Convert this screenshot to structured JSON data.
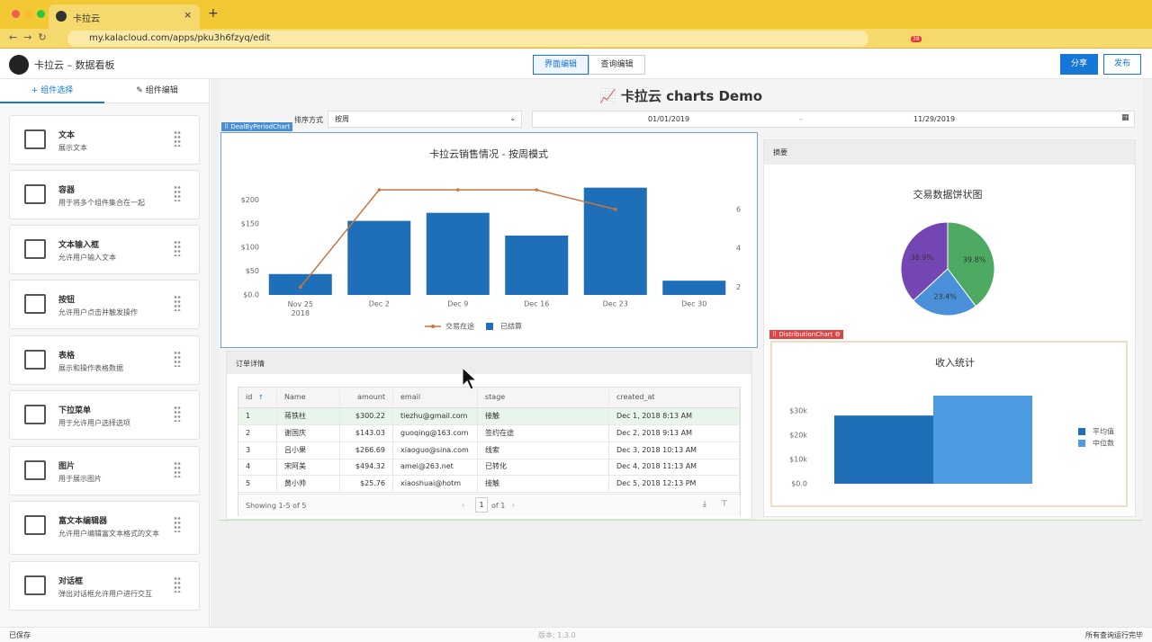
{
  "browser": {
    "tab_title": "卡拉云",
    "url": "my.kalacloud.com/apps/pku3h6fzyq/edit",
    "badge": "38"
  },
  "app_header": {
    "title": "卡拉云 – 数据看板",
    "tabs": [
      "界面编辑",
      "查询编辑"
    ],
    "buttons": [
      "分享",
      "发布"
    ]
  },
  "sidebar": {
    "tabs": [
      "组件选择",
      "组件编辑"
    ],
    "components": [
      {
        "name": "文本",
        "desc": "展示文本"
      },
      {
        "name": "容器",
        "desc": "用于将多个组件集合在一起"
      },
      {
        "name": "文本输入框",
        "desc": "允许用户输入文本"
      },
      {
        "name": "按钮",
        "desc": "允许用户点击并触发操作"
      },
      {
        "name": "表格",
        "desc": "展示和操作表格数据"
      },
      {
        "name": "下拉菜单",
        "desc": "用于允许用户选择选项"
      },
      {
        "name": "图片",
        "desc": "用于展示图片"
      },
      {
        "name": "富文本编辑器",
        "desc": "允许用户编辑富文本格式的文本"
      },
      {
        "name": "对话框",
        "desc": "弹出对话框允许用户进行交互"
      }
    ]
  },
  "canvas": {
    "title": "📈 卡拉云 charts Demo",
    "sort_label": "排序方式",
    "sort_value": "按周",
    "date_start": "01/01/2019",
    "date_sep": "–",
    "date_end": "11/29/2019",
    "chart_tags": [
      "DealByPeriodChart",
      "DistributionChart"
    ],
    "summary_title": "摘要"
  },
  "orders": {
    "title": "订单详情",
    "columns": [
      "id",
      "Name",
      "amount",
      "email",
      "stage",
      "created_at"
    ],
    "rows": [
      [
        "1",
        "蒋铁柱",
        "$300.22",
        "tiezhu@gmail.com",
        "接触",
        "Dec 1, 2018 8:13 AM"
      ],
      [
        "2",
        "谢国庆",
        "$143.03",
        "guoqing@163.com",
        "签约在途",
        "Dec 2, 2018 9:13 AM"
      ],
      [
        "3",
        "吕小果",
        "$266.69",
        "xiaoguo@sina.com",
        "线索",
        "Dec 3, 2018 10:13 AM"
      ],
      [
        "4",
        "宋阿美",
        "$494.32",
        "amei@263.net",
        "已转化",
        "Dec 4, 2018 11:13 AM"
      ],
      [
        "5",
        "黄小帅",
        "$25.76",
        "xiaoshuai@hotm",
        "接触",
        "Dec 5, 2018 12:13 PM"
      ]
    ],
    "footer": "Showing 1-5 of 5",
    "page": "1",
    "page_of": "of 1"
  },
  "status_bar": {
    "left": "已保存",
    "center": "版本: 1.3.0",
    "right": "所有查询运行完毕"
  },
  "chart_data": [
    {
      "type": "bar",
      "title": "卡拉云销售情况 - 按周模式",
      "categories": [
        "Nov 25 2018",
        "Dec 2",
        "Dec 9",
        "Dec 16",
        "Dec 23",
        "Dec 30"
      ],
      "series": [
        {
          "name": "交易在途",
          "type": "line",
          "axis": "y2",
          "color": "#c8773e",
          "values": [
            2,
            7,
            7,
            7,
            6,
            null
          ]
        },
        {
          "name": "已结算",
          "color": "#1f6fb8",
          "values": [
            44,
            156,
            173,
            125,
            226,
            30
          ]
        }
      ],
      "ylim": [
        0,
        250
      ],
      "yticks": [
        {
          "value": 0,
          "label": "$0.0"
        },
        {
          "value": 50,
          "label": "$50"
        },
        {
          "value": 100,
          "label": "$100"
        },
        {
          "value": 150,
          "label": "$150"
        },
        {
          "value": 200,
          "label": "$200"
        }
      ],
      "y2lim": [
        1.6,
        7.7
      ],
      "y2ticks": [
        2,
        4,
        6
      ],
      "grid": false,
      "legend": "bottom"
    },
    {
      "type": "pie",
      "title": "交易数据饼状图",
      "values": [
        39.8,
        23.4,
        36.9
      ],
      "value_labels": [
        "39.8%",
        "23.4%",
        "36.9%"
      ],
      "colors": [
        "#4caa62",
        "#4a90d9",
        "#7446b3"
      ]
    },
    {
      "type": "bar",
      "title": "收入统计",
      "categories": [
        null
      ],
      "series": [
        {
          "name": "平均值",
          "color": "#1f6fb8",
          "values": [
            28100
          ]
        },
        {
          "name": "中位数",
          "color": "#4d9be0",
          "values": [
            36300
          ]
        }
      ],
      "ylim": [
        0,
        40000
      ],
      "yticks": [
        {
          "value": 0,
          "label": "$0.0"
        },
        {
          "value": 10000,
          "label": "$10k"
        },
        {
          "value": 20000,
          "label": "$20k"
        },
        {
          "value": 30000,
          "label": "$30k"
        }
      ],
      "grid": false,
      "legend": "right"
    }
  ]
}
